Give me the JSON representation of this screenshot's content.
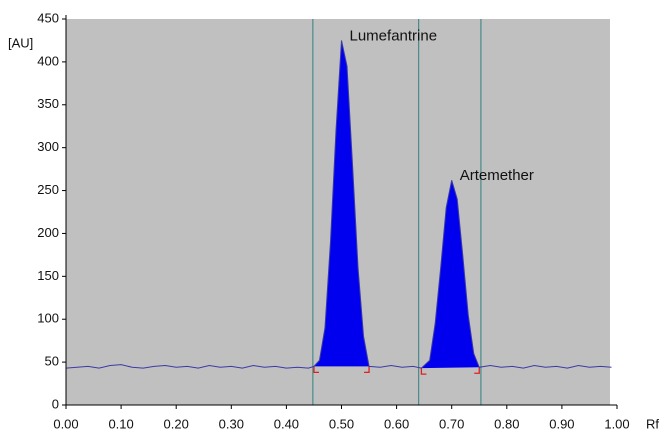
{
  "chart_data": {
    "type": "line",
    "y_axis_label": "[AU]",
    "x_axis_label": "Rf",
    "xlim": [
      0,
      1
    ],
    "ylim": [
      0,
      450
    ],
    "xticks": [
      {
        "value": 0,
        "label": "0.00"
      },
      {
        "value": 0.1,
        "label": "0.10"
      },
      {
        "value": 0.2,
        "label": "0.20"
      },
      {
        "value": 0.3,
        "label": "0.30"
      },
      {
        "value": 0.4,
        "label": "0.40"
      },
      {
        "value": 0.5,
        "label": "0.50"
      },
      {
        "value": 0.6,
        "label": "0.60"
      },
      {
        "value": 0.7,
        "label": "0.70"
      },
      {
        "value": 0.8,
        "label": "0.80"
      },
      {
        "value": 0.9,
        "label": "0.90"
      },
      {
        "value": 1,
        "label": "1.00"
      }
    ],
    "yticks": [
      0,
      50,
      100,
      150,
      200,
      250,
      300,
      350,
      400,
      450
    ],
    "x": [
      0,
      0.02,
      0.04,
      0.06,
      0.08,
      0.1,
      0.12,
      0.14,
      0.16,
      0.18,
      0.2,
      0.22,
      0.24,
      0.26,
      0.28,
      0.3,
      0.32,
      0.34,
      0.36,
      0.38,
      0.4,
      0.42,
      0.44,
      0.45,
      0.46,
      0.47,
      0.48,
      0.49,
      0.5,
      0.51,
      0.52,
      0.53,
      0.54,
      0.55,
      0.57,
      0.59,
      0.61,
      0.63,
      0.645,
      0.66,
      0.67,
      0.68,
      0.69,
      0.7,
      0.71,
      0.72,
      0.73,
      0.74,
      0.75,
      0.77,
      0.79,
      0.81,
      0.83,
      0.85,
      0.87,
      0.89,
      0.91,
      0.93,
      0.95,
      0.97,
      0.99
    ],
    "series": [
      {
        "color": "#3a3aa8",
        "values": [
          43,
          44,
          45,
          43,
          46,
          47,
          44,
          43,
          45,
          46,
          44,
          45,
          43,
          46,
          44,
          45,
          43,
          46,
          44,
          45,
          43,
          44,
          43,
          45,
          52,
          90,
          190,
          320,
          425,
          395,
          280,
          160,
          80,
          45,
          44,
          46,
          44,
          45,
          43,
          52,
          95,
          160,
          230,
          262,
          240,
          175,
          105,
          60,
          44,
          46,
          44,
          45,
          43,
          46,
          44,
          45,
          43,
          46,
          44,
          45,
          44
        ]
      }
    ],
    "vertical_lines": [
      0.448,
      0.64,
      0.753
    ],
    "fill_color": "#0000ee",
    "bracket_color": "#e02020",
    "peaks": [
      {
        "label": "Lumefantrine",
        "start": 0.45,
        "end": 0.55
      },
      {
        "label": "Artemether",
        "start": 0.645,
        "end": 0.75
      }
    ]
  }
}
